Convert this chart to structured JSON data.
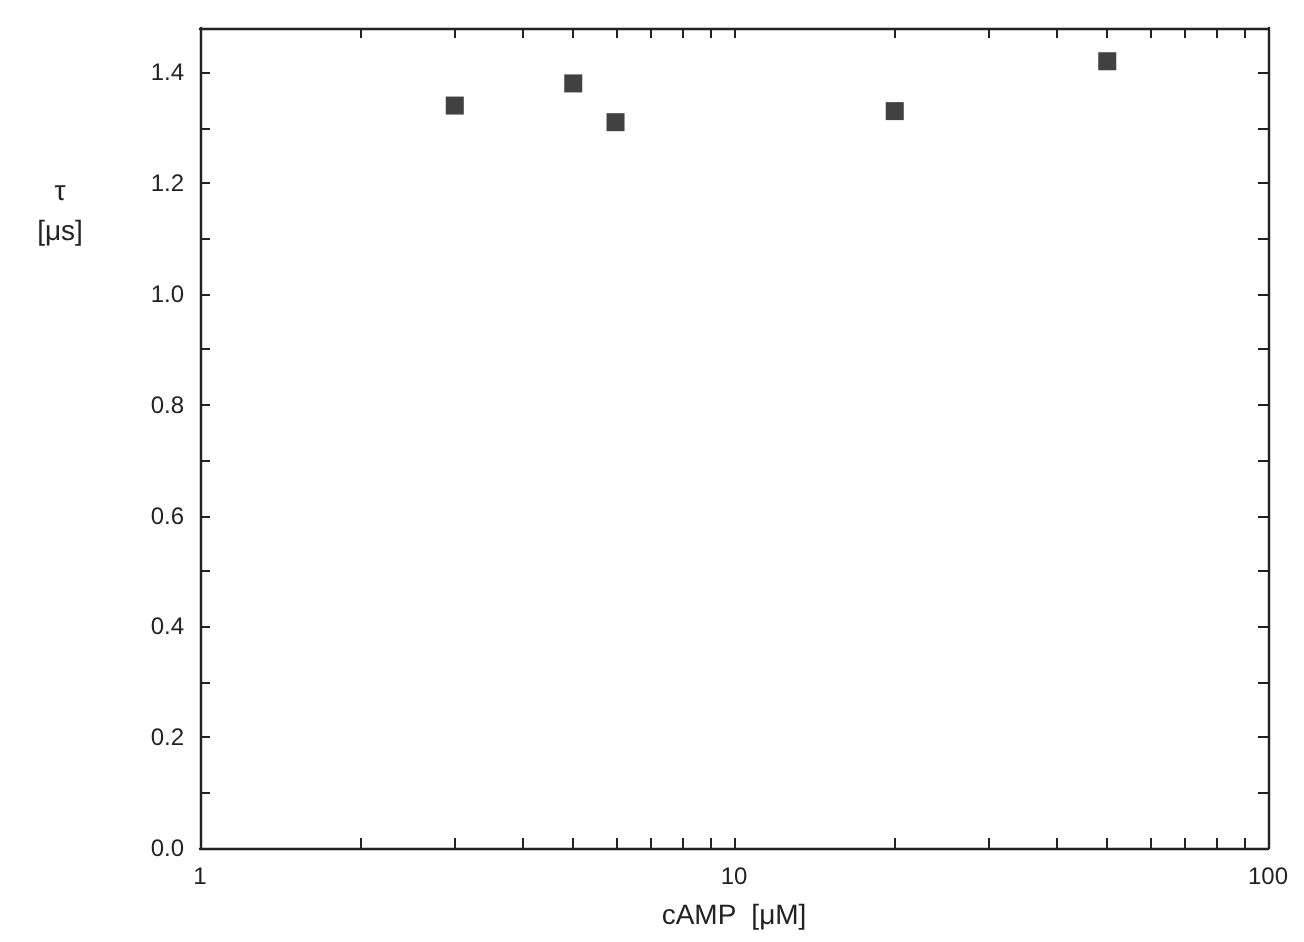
{
  "chart_data": {
    "type": "scatter",
    "xlabel": "cAMP  [μM]",
    "ylabel": "τ\n[μs]",
    "marker": "square",
    "log": "x",
    "grid": false,
    "x": [
      3,
      5,
      6,
      20,
      50
    ],
    "series": [
      {
        "color": "#111111",
        "values": [
          1.34,
          1.38,
          1.31,
          1.33,
          1.42
        ]
      }
    ],
    "xlim": [
      1,
      100
    ],
    "xticks": [
      1,
      {
        "value": 2,
        "label": null
      },
      {
        "value": 3,
        "label": null
      },
      {
        "value": 4,
        "label": null
      },
      {
        "value": 5,
        "label": null
      },
      {
        "value": 6,
        "label": null
      },
      {
        "value": 7,
        "label": null
      },
      {
        "value": 8,
        "label": null
      },
      {
        "value": 9,
        "label": null
      },
      10,
      {
        "value": 20,
        "label": null
      },
      {
        "value": 30,
        "label": null
      },
      {
        "value": 40,
        "label": null
      },
      {
        "value": 50,
        "label": null
      },
      {
        "value": 60,
        "label": null
      },
      {
        "value": 70,
        "label": null
      },
      {
        "value": 80,
        "label": null
      },
      {
        "value": 90,
        "label": null
      },
      100
    ],
    "ylim": [
      0,
      1.48
    ],
    "yticks": [
      {
        "value": 0,
        "label": "0.0"
      },
      {
        "value": 0.1,
        "label": null
      },
      {
        "value": 0.2,
        "label": "0.2"
      },
      {
        "value": 0.3,
        "label": null
      },
      {
        "value": 0.4,
        "label": "0.4"
      },
      {
        "value": 0.5,
        "label": null
      },
      {
        "value": 0.6,
        "label": "0.6"
      },
      {
        "value": 0.7,
        "label": null
      },
      {
        "value": 0.8,
        "label": "0.8"
      },
      {
        "value": 0.9,
        "label": null
      },
      {
        "value": 1.0,
        "label": "1.0"
      },
      {
        "value": 1.1,
        "label": null
      },
      {
        "value": 1.2,
        "label": "1.2"
      },
      {
        "value": 1.3,
        "label": null
      },
      {
        "value": 1.4,
        "label": "1.4"
      }
    ]
  }
}
